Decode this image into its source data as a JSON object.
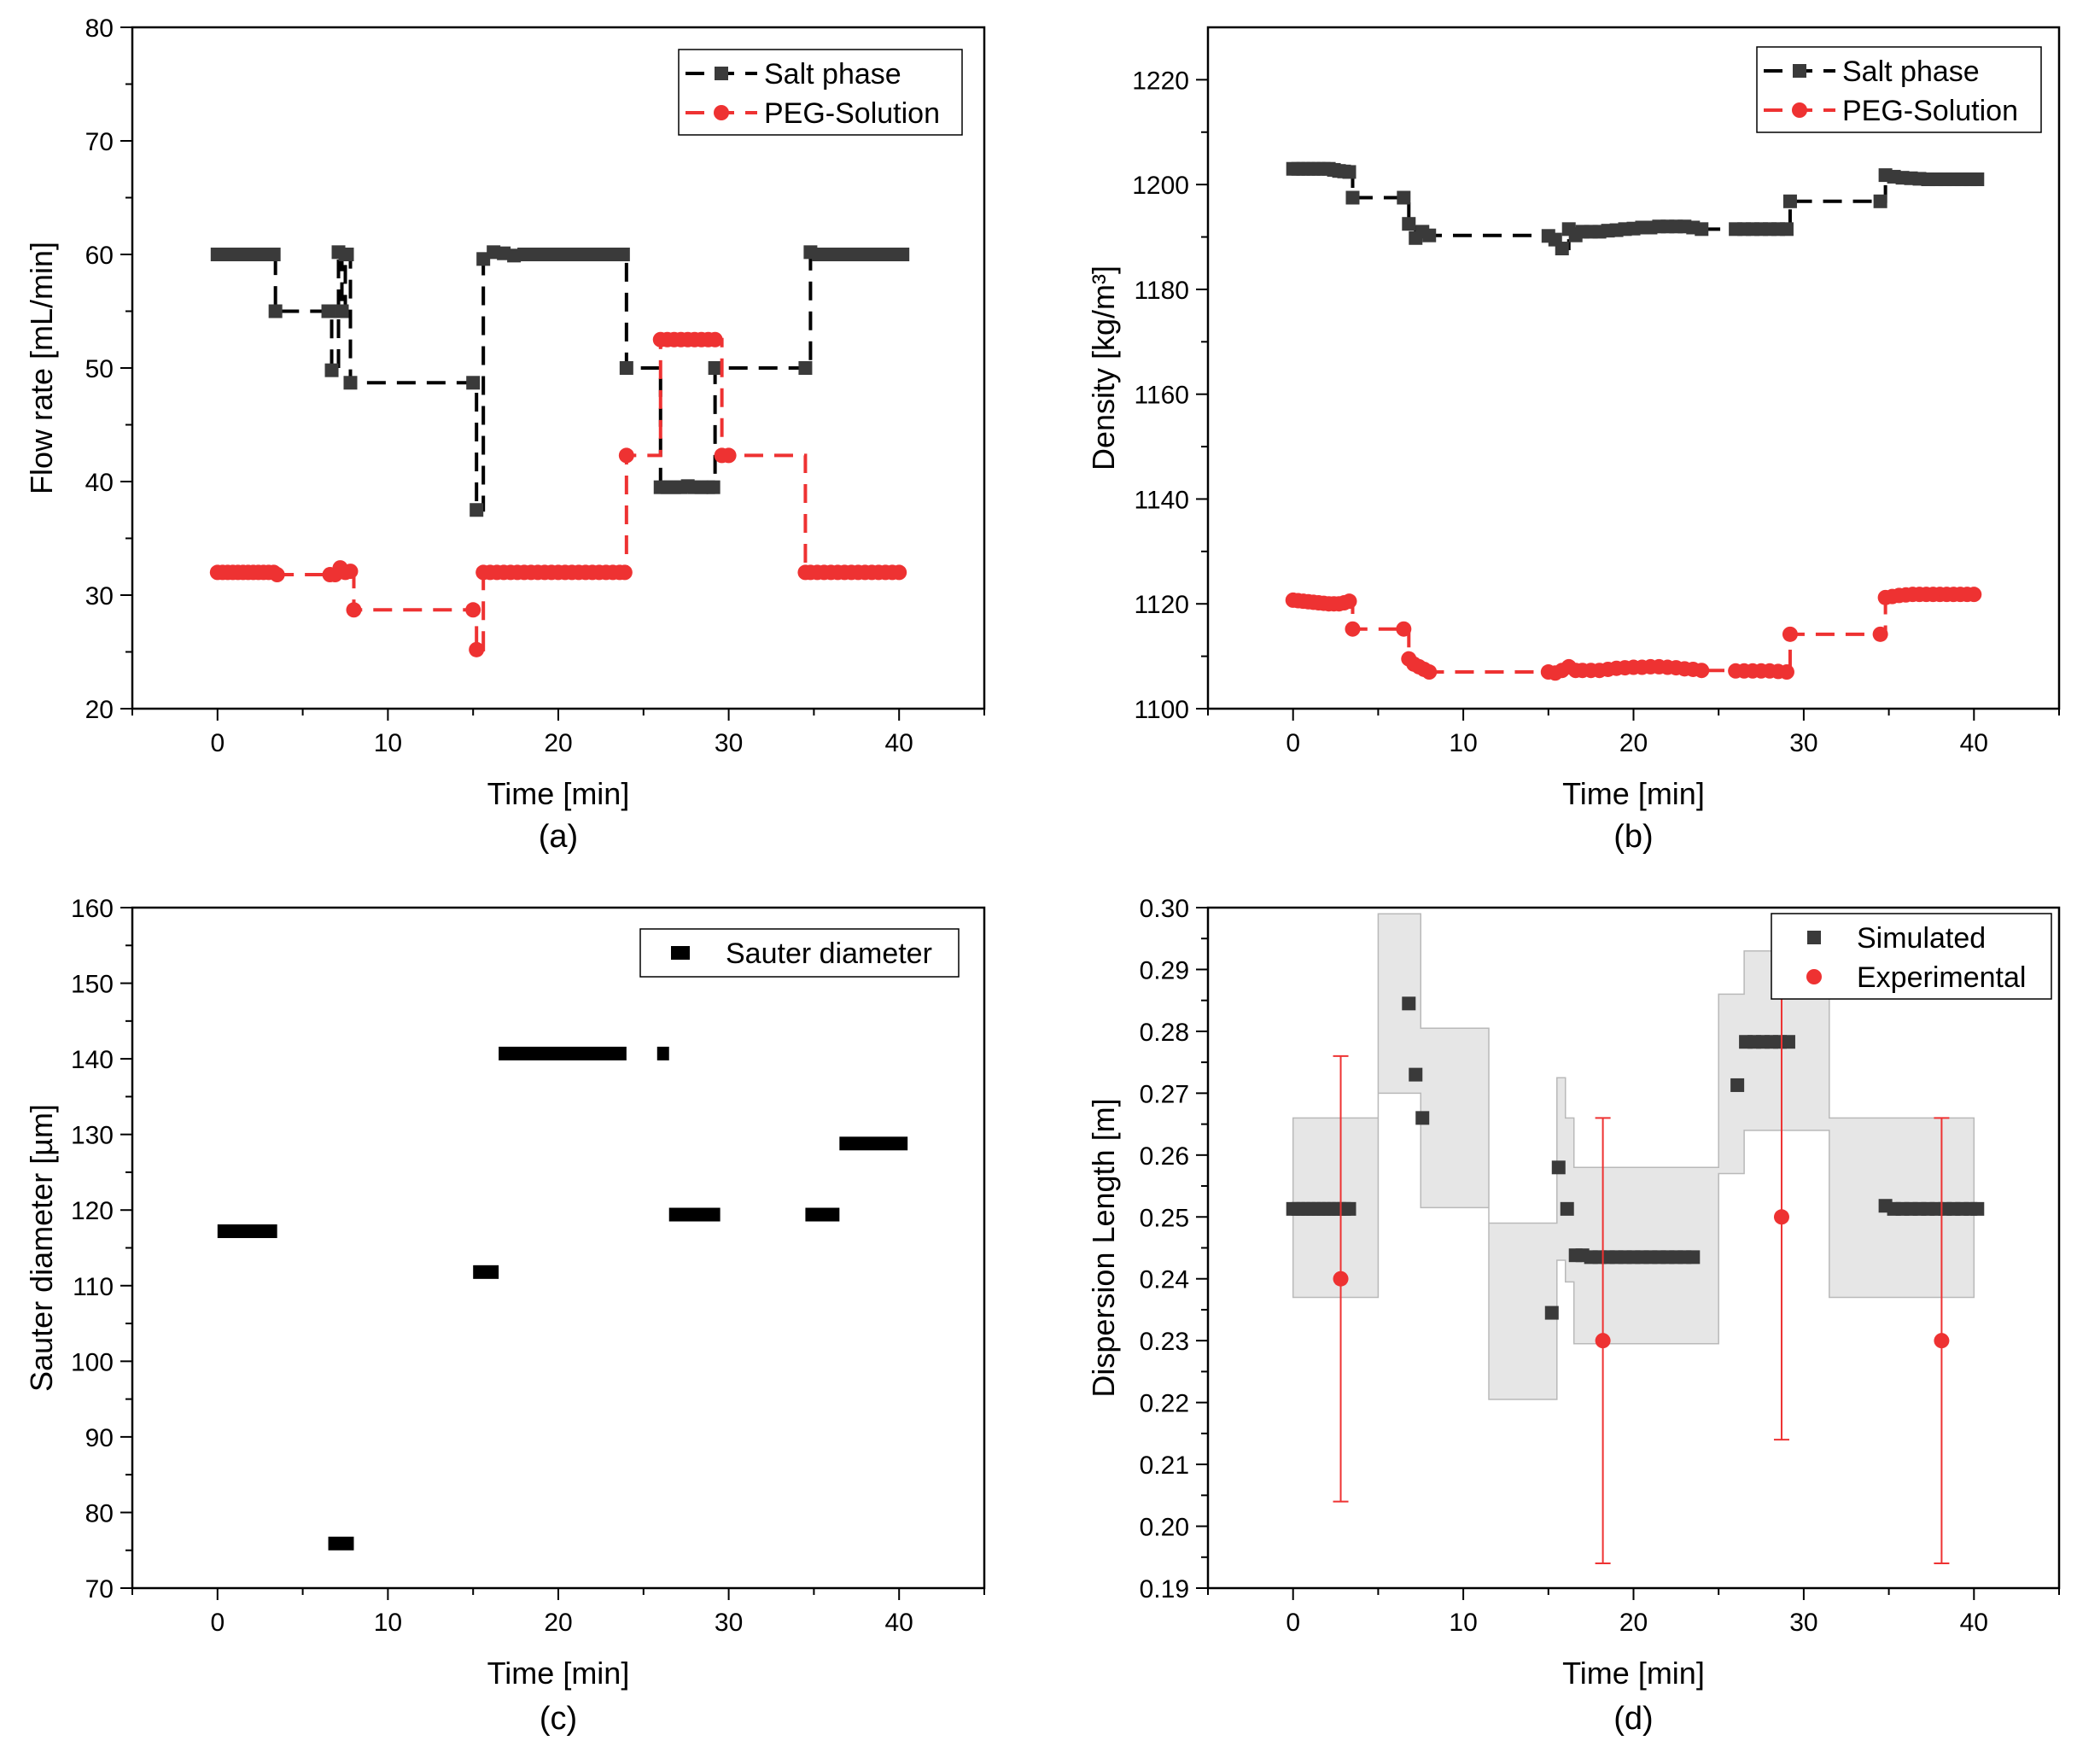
{
  "colors": {
    "salt": "#3a3a3a",
    "peg": "#ee3232",
    "black": "#000000",
    "band": "#e6e6e6"
  },
  "chart_data": [
    {
      "id": "a",
      "type": "line",
      "caption": "(a)",
      "xlabel": "Time [min]",
      "ylabel": "Flow rate [mL/min]",
      "xlim": [
        -5,
        45
      ],
      "ylim": [
        20,
        80
      ],
      "xticks": [
        0,
        10,
        20,
        30,
        40
      ],
      "yticks": [
        20,
        30,
        40,
        50,
        60,
        70,
        80
      ],
      "legend": {
        "position": "top-right",
        "entries": [
          "Salt phase",
          "PEG-Solution"
        ]
      },
      "series": [
        {
          "name": "Salt phase",
          "marker": "square",
          "line": "dashed",
          "x": [
            0.0,
            0.3,
            0.6,
            0.9,
            1.2,
            1.5,
            1.8,
            2.1,
            2.4,
            2.7,
            3.0,
            3.3,
            3.4,
            6.5,
            6.7,
            7.1,
            7.3,
            7.5,
            7.6,
            7.8,
            15.0,
            15.2,
            15.6,
            16.2,
            16.8,
            17.4,
            18.0,
            18.6,
            19.2,
            19.8,
            20.4,
            21.0,
            21.6,
            22.2,
            22.8,
            23.4,
            23.8,
            24.0,
            26.0,
            26.4,
            26.8,
            27.2,
            27.6,
            28.0,
            28.4,
            28.8,
            29.1,
            29.2,
            34.5,
            34.8,
            35.3,
            35.8,
            36.3,
            36.8,
            37.3,
            37.8,
            38.3,
            38.8,
            39.3,
            39.8,
            40.2
          ],
          "y": [
            60,
            60,
            60,
            60,
            60,
            60,
            60,
            60,
            60,
            60,
            60,
            60,
            55,
            55,
            49.8,
            60.2,
            55,
            60,
            60,
            48.7,
            48.7,
            37.5,
            59.6,
            60.2,
            60.1,
            59.9,
            60,
            60,
            60,
            60,
            60,
            60,
            60,
            60,
            60,
            60,
            60,
            50,
            39.5,
            39.5,
            39.5,
            39.5,
            39.6,
            39.5,
            39.5,
            39.5,
            39.5,
            50,
            50,
            60.2,
            60,
            60,
            60,
            60,
            60,
            60,
            60,
            60,
            60,
            60,
            60
          ]
        },
        {
          "name": "PEG-Solution",
          "marker": "circle",
          "line": "dashed",
          "x": [
            0.0,
            0.3,
            0.6,
            0.9,
            1.2,
            1.5,
            1.8,
            2.1,
            2.4,
            2.7,
            3.0,
            3.3,
            3.5,
            6.6,
            6.9,
            7.2,
            7.5,
            7.8,
            8.0,
            15.0,
            15.2,
            15.6,
            16.0,
            16.4,
            16.8,
            17.2,
            17.6,
            18.0,
            18.4,
            18.8,
            19.2,
            19.6,
            20.0,
            20.4,
            20.8,
            21.2,
            21.6,
            22.0,
            22.4,
            22.8,
            23.2,
            23.6,
            23.9,
            24.0,
            26.0,
            26.4,
            26.8,
            27.2,
            27.6,
            28.0,
            28.4,
            28.8,
            29.2,
            29.6,
            30.0,
            34.5,
            34.8,
            35.2,
            35.6,
            36.0,
            36.4,
            36.8,
            37.2,
            37.6,
            38.0,
            38.4,
            38.8,
            39.2,
            39.6,
            40.0
          ],
          "y": [
            32,
            32,
            32,
            32,
            32,
            32,
            32,
            32,
            32,
            32,
            32,
            32,
            31.8,
            31.8,
            31.8,
            32.4,
            32,
            32.1,
            28.7,
            28.7,
            25.2,
            32,
            32,
            32,
            32,
            32,
            32,
            32,
            32,
            32,
            32,
            32,
            32,
            32,
            32,
            32,
            32,
            32,
            32,
            32,
            32,
            32,
            32,
            42.3,
            52.5,
            52.5,
            52.5,
            52.5,
            52.5,
            52.5,
            52.5,
            52.5,
            52.5,
            42.3,
            42.3,
            32,
            32,
            32,
            32,
            32,
            32,
            32,
            32,
            32,
            32,
            32,
            32,
            32,
            32,
            32
          ]
        }
      ]
    },
    {
      "id": "b",
      "type": "line",
      "caption": "(b)",
      "xlabel": "Time [min]",
      "ylabel": "Density [kg/m³]",
      "xlim": [
        -5,
        45
      ],
      "ylim": [
        1100,
        1230
      ],
      "xticks": [
        0,
        10,
        20,
        30,
        40
      ],
      "yticks": [
        1100,
        1120,
        1140,
        1160,
        1180,
        1200,
        1220
      ],
      "legend": {
        "position": "top-right",
        "entries": [
          "Salt phase",
          "PEG-Solution"
        ]
      },
      "series": [
        {
          "name": "Salt phase",
          "marker": "square",
          "line": "dashed",
          "x": [
            0.0,
            0.3,
            0.6,
            0.9,
            1.2,
            1.5,
            1.8,
            2.1,
            2.4,
            2.7,
            3.0,
            3.3,
            3.5,
            6.5,
            6.8,
            7.2,
            7.6,
            8.0,
            15.0,
            15.4,
            15.8,
            16.2,
            16.6,
            17.0,
            17.5,
            18.0,
            18.5,
            19.0,
            19.5,
            20.0,
            20.5,
            21.0,
            21.5,
            22.0,
            22.5,
            23.0,
            23.5,
            24.0,
            26.0,
            26.5,
            27.0,
            27.5,
            28.0,
            28.5,
            29.0,
            29.2,
            34.5,
            34.8,
            35.3,
            35.8,
            36.3,
            36.8,
            37.3,
            37.8,
            38.3,
            38.8,
            39.3,
            39.8,
            40.2
          ],
          "y": [
            1203,
            1203,
            1203,
            1203,
            1203,
            1203,
            1203,
            1203,
            1202.8,
            1202.6,
            1202.5,
            1202.4,
            1197.5,
            1197.5,
            1192.5,
            1189.8,
            1191,
            1190.3,
            1190.2,
            1189.5,
            1187.8,
            1191.5,
            1190.3,
            1191,
            1191,
            1191,
            1191.2,
            1191.3,
            1191.5,
            1191.6,
            1191.8,
            1191.8,
            1192,
            1192,
            1192,
            1192,
            1191.8,
            1191.5,
            1191.5,
            1191.5,
            1191.5,
            1191.5,
            1191.5,
            1191.5,
            1191.5,
            1196.8,
            1196.8,
            1201.8,
            1201.5,
            1201.3,
            1201.2,
            1201.1,
            1201.0,
            1201.0,
            1201.0,
            1201.0,
            1201.0,
            1201.0,
            1201.0
          ]
        },
        {
          "name": "PEG-Solution",
          "marker": "circle",
          "line": "dashed",
          "x": [
            0.0,
            0.3,
            0.6,
            0.9,
            1.2,
            1.5,
            1.8,
            2.1,
            2.4,
            2.7,
            3.0,
            3.3,
            3.5,
            6.5,
            6.8,
            7.1,
            7.4,
            7.7,
            8.0,
            15.0,
            15.4,
            15.8,
            16.2,
            16.6,
            17.0,
            17.5,
            18.0,
            18.5,
            19.0,
            19.5,
            20.0,
            20.5,
            21.0,
            21.5,
            22.0,
            22.5,
            23.0,
            23.5,
            24.0,
            26.0,
            26.5,
            27.0,
            27.5,
            28.0,
            28.5,
            29.0,
            29.2,
            34.5,
            34.8,
            35.2,
            35.6,
            36.0,
            36.4,
            36.8,
            37.2,
            37.6,
            38.0,
            38.4,
            38.8,
            39.2,
            39.6,
            40.0
          ],
          "y": [
            1120.7,
            1120.6,
            1120.5,
            1120.4,
            1120.3,
            1120.2,
            1120.1,
            1120.0,
            1120.0,
            1120.0,
            1120.2,
            1120.5,
            1115.2,
            1115.2,
            1109.5,
            1108.5,
            1108.0,
            1107.5,
            1107.0,
            1107.0,
            1106.8,
            1107.3,
            1108.0,
            1107.3,
            1107.3,
            1107.3,
            1107.3,
            1107.5,
            1107.7,
            1107.8,
            1107.9,
            1107.9,
            1108.0,
            1108.0,
            1107.9,
            1107.8,
            1107.6,
            1107.5,
            1107.3,
            1107.2,
            1107.2,
            1107.2,
            1107.2,
            1107.2,
            1107.1,
            1107.0,
            1114.2,
            1114.2,
            1121.2,
            1121.4,
            1121.6,
            1121.7,
            1121.8,
            1121.8,
            1121.8,
            1121.8,
            1121.8,
            1121.8,
            1121.8,
            1121.8,
            1121.8,
            1121.8
          ]
        }
      ]
    },
    {
      "id": "c",
      "type": "scatter",
      "caption": "(c)",
      "xlabel": "Time [min]",
      "ylabel": "Sauter diameter [µm]",
      "xlim": [
        -5,
        45
      ],
      "ylim": [
        70,
        160
      ],
      "xticks": [
        0,
        10,
        20,
        30,
        40
      ],
      "yticks": [
        70,
        80,
        90,
        100,
        110,
        120,
        130,
        140,
        150,
        160
      ],
      "legend": {
        "position": "top-right",
        "entries": [
          "Sauter diameter"
        ]
      },
      "series": [
        {
          "name": "Sauter diameter",
          "marker": "square",
          "line": "none",
          "segments": [
            {
              "x0": 0,
              "x1": 3.5,
              "y": 117.2
            },
            {
              "x0": 6.5,
              "x1": 8.0,
              "y": 75.9
            },
            {
              "x0": 15.0,
              "x1": 16.5,
              "y": 111.8
            },
            {
              "x0": 16.5,
              "x1": 24.0,
              "y": 140.7
            },
            {
              "x0": 25.8,
              "x1": 26.5,
              "y": 140.7
            },
            {
              "x0": 26.5,
              "x1": 29.5,
              "y": 119.4
            },
            {
              "x0": 34.5,
              "x1": 36.5,
              "y": 119.4
            },
            {
              "x0": 36.5,
              "x1": 40.5,
              "y": 128.8
            }
          ]
        }
      ]
    },
    {
      "id": "d",
      "type": "scatter",
      "caption": "(d)",
      "xlabel": "Time [min]",
      "ylabel": "Dispersion Length [m]",
      "xlim": [
        -5,
        45
      ],
      "ylim": [
        0.19,
        0.3
      ],
      "xticks": [
        0,
        10,
        20,
        30,
        40
      ],
      "yticks": [
        0.19,
        0.2,
        0.21,
        0.22,
        0.23,
        0.24,
        0.25,
        0.26,
        0.27,
        0.28,
        0.29,
        0.3
      ],
      "legend": {
        "position": "top-right",
        "entries": [
          "Simulated",
          "Experimental"
        ]
      },
      "band": {
        "x": [
          0,
          5.0,
          5.0,
          7.5,
          7.5,
          11.5,
          11.5,
          15.5,
          15.5,
          16.0,
          16.0,
          16.5,
          16.5,
          25.0,
          25.0,
          26.5,
          26.5,
          31.5,
          31.5,
          40.0
        ],
        "low": [
          0.237,
          0.237,
          0.27,
          0.27,
          0.2515,
          0.2515,
          0.2205,
          0.2205,
          0.243,
          0.243,
          0.2395,
          0.2395,
          0.2295,
          0.2295,
          0.257,
          0.257,
          0.264,
          0.264,
          0.237,
          0.237
        ],
        "high": [
          0.266,
          0.266,
          0.299,
          0.299,
          0.2805,
          0.2805,
          0.249,
          0.249,
          0.2725,
          0.2725,
          0.266,
          0.266,
          0.258,
          0.258,
          0.286,
          0.286,
          0.293,
          0.293,
          0.266,
          0.266
        ]
      },
      "series": [
        {
          "name": "Simulated",
          "marker": "square",
          "line": "none",
          "x": [
            0.0,
            0.3,
            0.6,
            0.9,
            1.2,
            1.5,
            1.8,
            2.1,
            2.4,
            2.7,
            3.0,
            3.3,
            6.8,
            7.2,
            7.6,
            15.2,
            15.6,
            16.1,
            16.6,
            17.0,
            17.5,
            18.0,
            18.5,
            19.0,
            19.5,
            20.0,
            20.5,
            21.0,
            21.5,
            22.0,
            22.5,
            23.0,
            23.5,
            26.1,
            26.6,
            27.1,
            27.6,
            28.1,
            28.6,
            29.1,
            34.8,
            35.3,
            35.8,
            36.3,
            36.8,
            37.3,
            37.8,
            38.3,
            38.8,
            39.3,
            39.8,
            40.2
          ],
          "y": [
            0.2513,
            0.2513,
            0.2513,
            0.2513,
            0.2513,
            0.2513,
            0.2513,
            0.2513,
            0.2513,
            0.2513,
            0.2513,
            0.2513,
            0.2845,
            0.273,
            0.266,
            0.2345,
            0.258,
            0.2513,
            0.2438,
            0.2438,
            0.2435,
            0.2435,
            0.2435,
            0.2435,
            0.2435,
            0.2435,
            0.2435,
            0.2435,
            0.2435,
            0.2435,
            0.2435,
            0.2435,
            0.2435,
            0.2713,
            0.2783,
            0.2783,
            0.2783,
            0.2783,
            0.2783,
            0.2783,
            0.2518,
            0.2513,
            0.2513,
            0.2513,
            0.2513,
            0.2513,
            0.2513,
            0.2513,
            0.2513,
            0.2513,
            0.2513,
            0.2513
          ]
        },
        {
          "name": "Experimental",
          "marker": "circle",
          "line": "none",
          "x": [
            2.8,
            18.2,
            28.7,
            38.1
          ],
          "y": [
            0.24,
            0.23,
            0.25,
            0.23
          ],
          "err_low": [
            0.204,
            0.194,
            0.214,
            0.194
          ],
          "err_high": [
            0.276,
            0.266,
            0.286,
            0.266
          ]
        }
      ]
    }
  ]
}
